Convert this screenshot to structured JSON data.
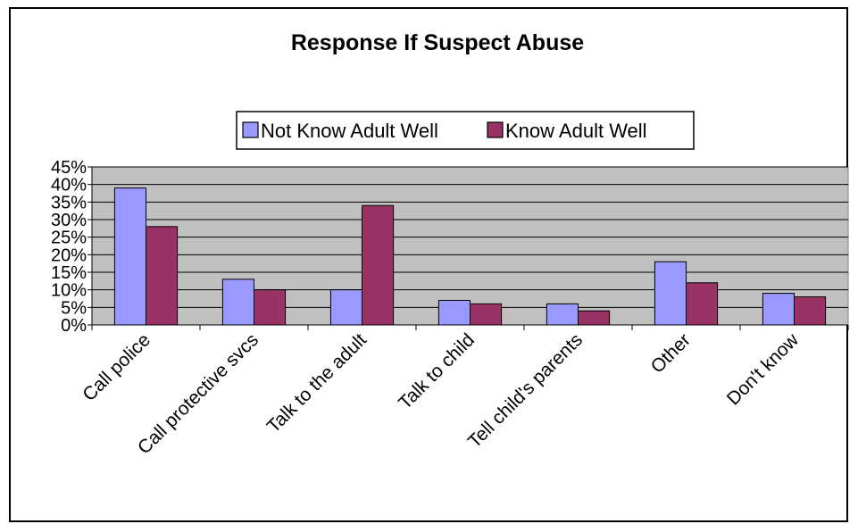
{
  "chart_data": {
    "type": "bar",
    "title": "Response If Suspect Abuse",
    "xlabel": "",
    "ylabel": "",
    "categories": [
      "Call police",
      "Call protective svcs",
      "Talk to the adult",
      "Talk to child",
      "Tell child's parents",
      "Other",
      "Don't know"
    ],
    "series": [
      {
        "name": "Not Know Adult Well",
        "color": "#9999ff",
        "values": [
          39,
          13,
          10,
          7,
          6,
          18,
          9
        ]
      },
      {
        "name": "Know Adult Well",
        "color": "#993366",
        "values": [
          28,
          10,
          34,
          6,
          4,
          12,
          8
        ]
      }
    ],
    "ylim": [
      0,
      45
    ],
    "yticks": [
      "0%",
      "5%",
      "10%",
      "15%",
      "20%",
      "25%",
      "30%",
      "35%",
      "40%",
      "45%"
    ],
    "grid": true,
    "legend_position": "top",
    "plot_background": "#c0c0c0"
  }
}
